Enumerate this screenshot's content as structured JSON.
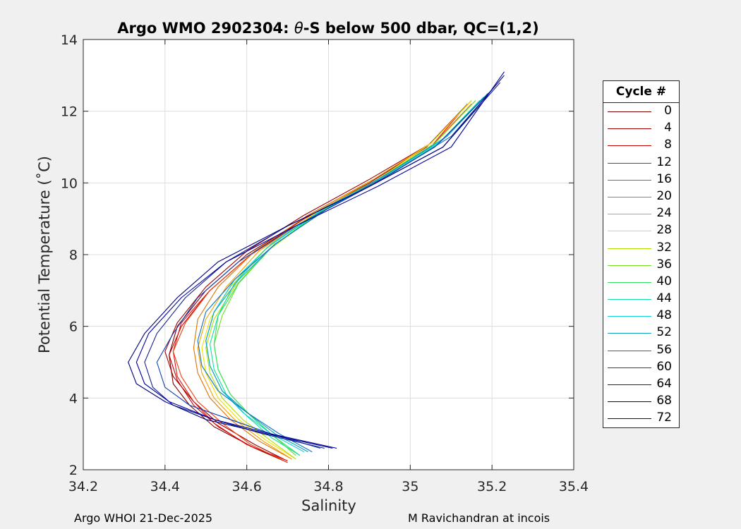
{
  "chart_data": {
    "type": "line",
    "title": "Argo WMO 2902304: θ-S below 500 dbar,  QC=(1,2)",
    "title_parts": {
      "prefix": "Argo WMO 2902304: ",
      "theta": "θ",
      "suffix": "-S below 500 dbar,  QC=(1,2)"
    },
    "xlabel": "Salinity",
    "ylabel": "Potential Temperature (˚C)",
    "xlim": [
      34.2,
      35.4
    ],
    "ylim": [
      2,
      14
    ],
    "xticks": [
      "34.2",
      "34.4",
      "34.6",
      "34.8",
      "35",
      "35.2",
      "35.4"
    ],
    "yticks": [
      "2",
      "4",
      "6",
      "8",
      "10",
      "12",
      "14"
    ],
    "grid": true,
    "legend": {
      "title": "Cycle #",
      "position": "right",
      "entries": [
        {
          "label": "0",
          "color": "#800000"
        },
        {
          "label": "4",
          "color": "#a00000"
        },
        {
          "label": "8",
          "color": "#c00000"
        },
        {
          "label": "12",
          "color": "#e01010"
        },
        {
          "label": "16",
          "color": "#f04010"
        },
        {
          "label": "20",
          "color": "#e07000"
        },
        {
          "label": "24",
          "color": "#f0a000"
        },
        {
          "label": "28",
          "color": "#f0e000"
        },
        {
          "label": "32",
          "color": "#b0e000"
        },
        {
          "label": "36",
          "color": "#70e020"
        },
        {
          "label": "40",
          "color": "#30e060"
        },
        {
          "label": "44",
          "color": "#10e0a0"
        },
        {
          "label": "48",
          "color": "#10d0e0"
        },
        {
          "label": "52",
          "color": "#10a0c0"
        },
        {
          "label": "56",
          "color": "#1070c0"
        },
        {
          "label": "60",
          "color": "#1040b0"
        },
        {
          "label": "64",
          "color": "#102090"
        },
        {
          "label": "68",
          "color": "#000080"
        },
        {
          "label": "72",
          "color": "#0000a0"
        }
      ]
    },
    "series": [
      {
        "name": "0",
        "color": "#800000",
        "s": [
          34.7,
          34.62,
          34.52,
          34.46,
          34.42,
          34.41,
          34.43,
          34.5,
          34.6,
          34.74,
          34.9,
          35.04,
          35.14
        ],
        "t": [
          2.2,
          2.6,
          3.2,
          3.8,
          4.4,
          5.2,
          6.0,
          7.0,
          8.0,
          9.0,
          10.0,
          11.0,
          12.2
        ]
      },
      {
        "name": "4",
        "color": "#a00000",
        "s": [
          34.69,
          34.62,
          34.53,
          34.47,
          34.42,
          34.4,
          34.43,
          34.5,
          34.6,
          34.74,
          34.9,
          35.05,
          35.15
        ],
        "t": [
          2.3,
          2.7,
          3.3,
          3.9,
          4.6,
          5.3,
          6.1,
          7.1,
          8.1,
          9.1,
          10.1,
          11.1,
          12.3
        ]
      },
      {
        "name": "8",
        "color": "#c00000",
        "s": [
          34.7,
          34.61,
          34.53,
          34.47,
          34.43,
          34.41,
          34.44,
          34.51,
          34.61,
          34.74,
          34.91,
          35.05,
          35.15
        ],
        "t": [
          2.25,
          2.65,
          3.2,
          3.8,
          4.5,
          5.2,
          6.0,
          7.0,
          8.0,
          9.0,
          10.0,
          11.0,
          12.2
        ]
      },
      {
        "name": "12",
        "color": "#e01010",
        "s": [
          34.69,
          34.6,
          34.52,
          34.47,
          34.43,
          34.42,
          34.44,
          34.51,
          34.61,
          34.75,
          34.91,
          35.05,
          35.14
        ],
        "t": [
          2.3,
          2.7,
          3.3,
          3.9,
          4.6,
          5.3,
          6.1,
          7.0,
          8.0,
          9.0,
          10.0,
          11.0,
          12.2
        ]
      },
      {
        "name": "16",
        "color": "#f04010",
        "s": [
          34.7,
          34.61,
          34.54,
          34.48,
          34.44,
          34.42,
          34.45,
          34.51,
          34.61,
          34.75,
          34.91,
          35.05,
          35.15
        ],
        "t": [
          2.2,
          2.7,
          3.3,
          3.9,
          4.6,
          5.3,
          6.1,
          7.0,
          8.0,
          9.0,
          10.0,
          11.0,
          12.2
        ]
      },
      {
        "name": "20",
        "color": "#e07000",
        "s": [
          34.71,
          34.63,
          34.56,
          34.51,
          34.48,
          34.47,
          34.48,
          34.53,
          34.62,
          34.75,
          34.91,
          35.05,
          35.15
        ],
        "t": [
          2.3,
          2.8,
          3.4,
          4.0,
          4.7,
          5.4,
          6.2,
          7.1,
          8.1,
          9.1,
          10.1,
          11.1,
          12.3
        ]
      },
      {
        "name": "24",
        "color": "#f0a000",
        "s": [
          34.71,
          34.64,
          34.57,
          34.52,
          34.49,
          34.48,
          34.5,
          34.55,
          34.63,
          34.76,
          34.91,
          35.05,
          35.15
        ],
        "t": [
          2.3,
          2.8,
          3.4,
          4.0,
          4.7,
          5.4,
          6.2,
          7.1,
          8.1,
          9.1,
          10.1,
          11.1,
          12.3
        ]
      },
      {
        "name": "28",
        "color": "#f0e000",
        "s": [
          34.72,
          34.65,
          34.58,
          34.53,
          34.5,
          34.49,
          34.51,
          34.56,
          34.64,
          34.76,
          34.92,
          35.05,
          35.15
        ],
        "t": [
          2.3,
          2.8,
          3.4,
          4.0,
          4.7,
          5.4,
          6.2,
          7.1,
          8.1,
          9.1,
          10.1,
          11.1,
          12.3
        ]
      },
      {
        "name": "32",
        "color": "#b0e000",
        "s": [
          34.72,
          34.66,
          34.59,
          34.54,
          34.51,
          34.5,
          34.52,
          34.57,
          34.65,
          34.77,
          34.92,
          35.06,
          35.16
        ],
        "t": [
          2.3,
          2.8,
          3.4,
          4.0,
          4.7,
          5.4,
          6.2,
          7.1,
          8.1,
          9.1,
          10.1,
          11.1,
          12.3
        ]
      },
      {
        "name": "36",
        "color": "#70e020",
        "s": [
          34.72,
          34.67,
          34.61,
          34.56,
          34.53,
          34.52,
          34.54,
          34.58,
          34.66,
          34.78,
          34.92,
          35.06,
          35.16
        ],
        "t": [
          2.4,
          2.9,
          3.5,
          4.1,
          4.8,
          5.5,
          6.3,
          7.2,
          8.2,
          9.2,
          10.1,
          11.1,
          12.3
        ]
      },
      {
        "name": "40",
        "color": "#30e060",
        "s": [
          34.73,
          34.67,
          34.61,
          34.56,
          34.53,
          34.52,
          34.53,
          34.58,
          34.66,
          34.78,
          34.93,
          35.07,
          35.17
        ],
        "t": [
          2.4,
          2.9,
          3.5,
          4.1,
          4.8,
          5.5,
          6.3,
          7.2,
          8.2,
          9.2,
          10.1,
          11.1,
          12.3
        ]
      },
      {
        "name": "44",
        "color": "#10e0a0",
        "s": [
          34.73,
          34.66,
          34.6,
          34.55,
          34.52,
          34.51,
          34.53,
          34.57,
          34.65,
          34.78,
          34.93,
          35.07,
          35.17
        ],
        "t": [
          2.4,
          2.9,
          3.5,
          4.1,
          4.8,
          5.5,
          6.3,
          7.2,
          8.2,
          9.2,
          10.1,
          11.1,
          12.3
        ]
      },
      {
        "name": "48",
        "color": "#10d0e0",
        "s": [
          34.74,
          34.66,
          34.59,
          34.54,
          34.51,
          34.5,
          34.52,
          34.57,
          34.66,
          34.79,
          34.94,
          35.08,
          35.18
        ],
        "t": [
          2.5,
          3.0,
          3.6,
          4.2,
          4.9,
          5.6,
          6.4,
          7.3,
          8.3,
          9.3,
          10.2,
          11.2,
          12.4
        ]
      },
      {
        "name": "52",
        "color": "#10a0c0",
        "s": [
          34.75,
          34.67,
          34.6,
          34.54,
          34.51,
          34.5,
          34.52,
          34.58,
          34.67,
          34.8,
          34.95,
          35.09,
          35.19
        ],
        "t": [
          2.5,
          3.0,
          3.6,
          4.2,
          4.9,
          5.6,
          6.4,
          7.3,
          8.3,
          9.3,
          10.3,
          11.3,
          12.5
        ]
      },
      {
        "name": "56",
        "color": "#1070c0",
        "s": [
          34.76,
          34.68,
          34.6,
          34.53,
          34.49,
          34.48,
          34.5,
          34.57,
          34.67,
          34.8,
          34.96,
          35.1,
          35.2
        ],
        "t": [
          2.5,
          3.0,
          3.6,
          4.2,
          4.9,
          5.6,
          6.4,
          7.3,
          8.3,
          9.3,
          10.3,
          11.3,
          12.6
        ]
      },
      {
        "name": "60",
        "color": "#1040b0",
        "s": [
          34.78,
          34.66,
          34.56,
          34.46,
          34.4,
          34.38,
          34.42,
          34.48,
          34.58,
          34.72,
          34.9,
          35.06,
          35.2
        ],
        "t": [
          2.6,
          3.0,
          3.4,
          3.8,
          4.3,
          5.0,
          5.8,
          6.8,
          7.8,
          8.8,
          9.9,
          11.0,
          12.6
        ]
      },
      {
        "name": "64",
        "color": "#102090",
        "s": [
          34.79,
          34.64,
          34.52,
          34.42,
          34.37,
          34.35,
          34.38,
          34.45,
          34.55,
          34.7,
          34.9,
          35.08,
          35.22
        ],
        "t": [
          2.6,
          3.0,
          3.4,
          3.8,
          4.3,
          5.0,
          5.8,
          6.8,
          7.8,
          8.8,
          9.9,
          11.0,
          12.8
        ]
      },
      {
        "name": "68",
        "color": "#000080",
        "s": [
          34.81,
          34.65,
          34.5,
          34.4,
          34.33,
          34.31,
          34.35,
          34.43,
          34.53,
          34.7,
          34.9,
          35.08,
          35.23
        ],
        "t": [
          2.6,
          3.0,
          3.4,
          3.9,
          4.4,
          5.0,
          5.8,
          6.8,
          7.8,
          8.8,
          9.9,
          11.0,
          13.0
        ]
      },
      {
        "name": "72",
        "color": "#0000a0",
        "s": [
          34.82,
          34.66,
          34.52,
          34.41,
          34.35,
          34.33,
          34.36,
          34.44,
          34.55,
          34.72,
          34.92,
          35.1,
          35.23
        ],
        "t": [
          2.6,
          3.0,
          3.4,
          3.9,
          4.4,
          5.0,
          5.8,
          6.8,
          7.8,
          8.8,
          9.9,
          11.0,
          13.1
        ]
      }
    ]
  },
  "footer": {
    "left": "Argo WHOI 21-Dec-2025",
    "right": "M Ravichandran at incois"
  }
}
